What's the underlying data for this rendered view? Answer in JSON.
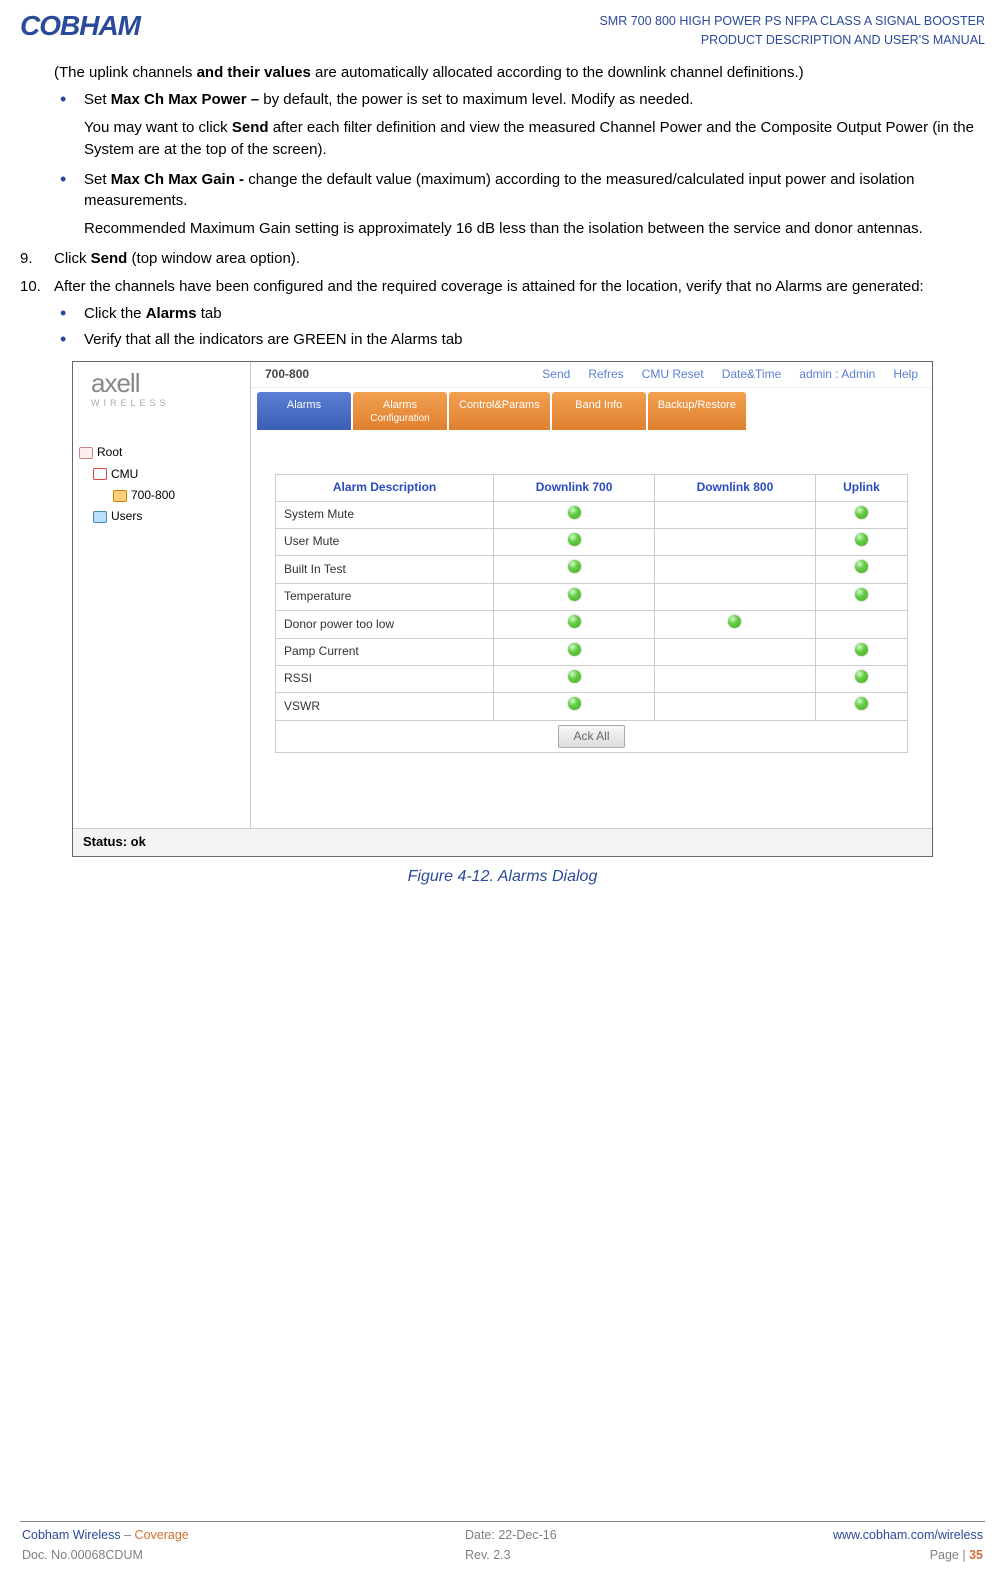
{
  "header": {
    "logo": "COBHAM",
    "title1": "SMR 700 800 HIGH POWER PS NFPA CLASS A SIGNAL BOOSTER",
    "title2": "PRODUCT DESCRIPTION AND USER'S MANUAL"
  },
  "text": {
    "p1a": "(The uplink channels ",
    "p1b": "and their values",
    "p1c": " are automatically allocated according to the downlink channel definitions.)",
    "b1a": "Set ",
    "b1b": "Max Ch Max Power – ",
    "b1c": "by default, the power is set to maximum level. Modify as needed.",
    "b1s": "You may want to click ",
    "b1s_bold": "Send ",
    "b1s2": "after each filter definition and view the measured Channel Power and the Composite Output Power (in the System are at the top of the screen).",
    "b2a": "Set ",
    "b2b": "Max Ch Max Gain - ",
    "b2c": "change the default value (maximum) according to the measured/calculated input power and isolation measurements.",
    "b2s": "Recommended Maximum Gain setting is approximately 16 dB less than the isolation between the service and donor antennas.",
    "n9a": "Click ",
    "n9b": "Send",
    "n9c": " (top window area option).",
    "n10": "After the channels have been configured and the required coverage is attained for the location, verify that no Alarms are generated:",
    "n10b1a": "Click the ",
    "n10b1b": "Alarms",
    "n10b1c": " tab",
    "n10b2": "Verify that all the indicators are GREEN in the Alarms tab",
    "num9": "9.",
    "num10": "10."
  },
  "ss": {
    "logo_big": "axell",
    "logo_small": "WIRELESS",
    "device": "700-800",
    "menu": {
      "send": "Send",
      "refres": "Refres",
      "cmu": "CMU Reset",
      "date": "Date&Time",
      "admin": "admin : Admin",
      "help": "Help"
    },
    "tabs": [
      "Alarms",
      "Alarms Configuration",
      "Control&Params",
      "Band Info",
      "Backup/Restore"
    ],
    "tree": {
      "root": "Root",
      "cmu": "CMU",
      "band": "700-800",
      "users": "Users"
    },
    "table": {
      "hdr_desc": "Alarm Description",
      "hdr_d700": "Downlink 700",
      "hdr_d800": "Downlink 800",
      "hdr_up": "Uplink",
      "rows": [
        {
          "name": "System Mute",
          "d700": 1,
          "d800": 0,
          "up": 1
        },
        {
          "name": "User Mute",
          "d700": 1,
          "d800": 0,
          "up": 1
        },
        {
          "name": "Built In Test",
          "d700": 1,
          "d800": 0,
          "up": 1
        },
        {
          "name": "Temperature",
          "d700": 1,
          "d800": 0,
          "up": 1
        },
        {
          "name": "Donor power too low",
          "d700": 1,
          "d800": 1,
          "up": 0
        },
        {
          "name": "Pamp Current",
          "d700": 1,
          "d800": 0,
          "up": 1
        },
        {
          "name": "RSSI",
          "d700": 1,
          "d800": 0,
          "up": 1
        },
        {
          "name": "VSWR",
          "d700": 1,
          "d800": 0,
          "up": 1
        }
      ],
      "ack": "Ack All"
    },
    "status_label": "Status: ",
    "status_val": "ok"
  },
  "caption": "Figure 4-12. Alarms Dialog",
  "footer": {
    "l1a": "Cobham Wireless",
    "l1sep": " – ",
    "l1b": "Coverage",
    "l2": "Doc. No.00068CDUM",
    "c1": "Date: 22-Dec-16",
    "c2": "Rev. 2.3",
    "r1": "www.cobham.com/wireless",
    "r2a": "Page | ",
    "r2b": "35"
  }
}
